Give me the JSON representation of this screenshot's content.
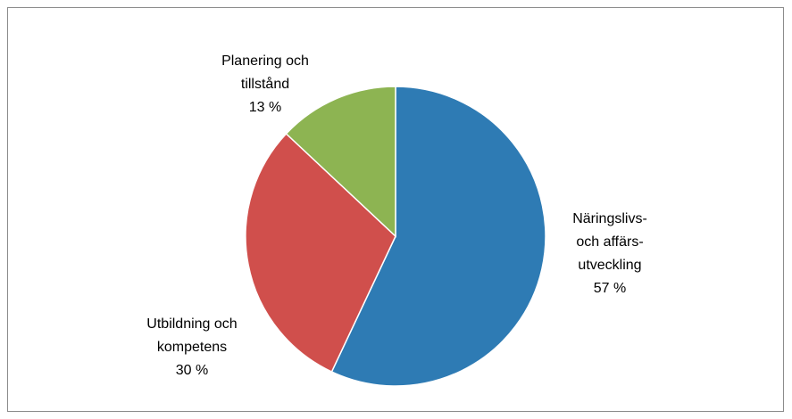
{
  "chart_data": {
    "type": "pie",
    "categories": [
      "Näringslivs-\noch affärs-\nutveckling",
      "Utbildning och\nkompetens",
      "Planering och\ntillstånd"
    ],
    "values": [
      57,
      30,
      13
    ],
    "value_labels": [
      "57 %",
      "30 %",
      "13 %"
    ],
    "colors": [
      "#2e7bb4",
      "#d04f4c",
      "#8db452"
    ]
  }
}
